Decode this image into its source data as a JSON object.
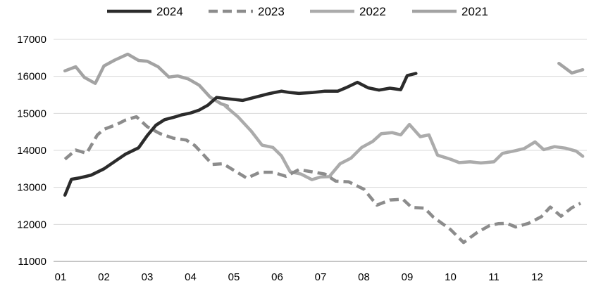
{
  "chart_data": {
    "type": "line",
    "x_ticks": [
      "01",
      "02",
      "03",
      "04",
      "05",
      "06",
      "07",
      "08",
      "09",
      "10",
      "11",
      "12"
    ],
    "y_ticks": [
      11000,
      12000,
      13000,
      14000,
      15000,
      16000,
      17000
    ],
    "ylim": [
      11000,
      17000
    ],
    "grid": "horizontal",
    "legend_position": "top",
    "series": [
      {
        "name": "2024",
        "color": "#2b2b2b",
        "style": "solid",
        "points": [
          [
            1.1,
            12790
          ],
          [
            1.25,
            13220
          ],
          [
            1.45,
            13260
          ],
          [
            1.7,
            13330
          ],
          [
            2.0,
            13500
          ],
          [
            2.3,
            13740
          ],
          [
            2.5,
            13900
          ],
          [
            2.8,
            14070
          ],
          [
            3.0,
            14400
          ],
          [
            3.2,
            14680
          ],
          [
            3.4,
            14830
          ],
          [
            3.6,
            14890
          ],
          [
            3.8,
            14960
          ],
          [
            4.0,
            15010
          ],
          [
            4.2,
            15090
          ],
          [
            4.4,
            15220
          ],
          [
            4.6,
            15430
          ],
          [
            4.9,
            15390
          ],
          [
            5.2,
            15350
          ],
          [
            5.5,
            15440
          ],
          [
            5.8,
            15530
          ],
          [
            6.1,
            15600
          ],
          [
            6.3,
            15560
          ],
          [
            6.5,
            15540
          ],
          [
            6.8,
            15560
          ],
          [
            7.1,
            15600
          ],
          [
            7.4,
            15600
          ],
          [
            7.6,
            15700
          ],
          [
            7.85,
            15840
          ],
          [
            8.1,
            15690
          ],
          [
            8.35,
            15630
          ],
          [
            8.6,
            15680
          ],
          [
            8.85,
            15640
          ],
          [
            9.0,
            16020
          ],
          [
            9.2,
            16080
          ]
        ]
      },
      {
        "name": "2023",
        "color": "#8c8c8c",
        "style": "dashed",
        "points": [
          [
            1.1,
            13760
          ],
          [
            1.35,
            14010
          ],
          [
            1.6,
            13920
          ],
          [
            1.85,
            14420
          ],
          [
            2.0,
            14570
          ],
          [
            2.3,
            14700
          ],
          [
            2.5,
            14820
          ],
          [
            2.75,
            14910
          ],
          [
            3.0,
            14640
          ],
          [
            3.3,
            14450
          ],
          [
            3.6,
            14330
          ],
          [
            3.9,
            14280
          ],
          [
            4.1,
            14130
          ],
          [
            4.3,
            13880
          ],
          [
            4.5,
            13620
          ],
          [
            4.75,
            13640
          ],
          [
            5.0,
            13460
          ],
          [
            5.3,
            13250
          ],
          [
            5.6,
            13410
          ],
          [
            5.9,
            13410
          ],
          [
            6.2,
            13300
          ],
          [
            6.5,
            13480
          ],
          [
            6.8,
            13420
          ],
          [
            7.1,
            13360
          ],
          [
            7.35,
            13170
          ],
          [
            7.65,
            13150
          ],
          [
            8.0,
            12950
          ],
          [
            8.3,
            12520
          ],
          [
            8.6,
            12660
          ],
          [
            8.9,
            12680
          ],
          [
            9.1,
            12460
          ],
          [
            9.4,
            12440
          ],
          [
            9.6,
            12200
          ],
          [
            10.0,
            11860
          ],
          [
            10.3,
            11510
          ],
          [
            10.6,
            11770
          ],
          [
            10.9,
            11970
          ],
          [
            11.1,
            12020
          ],
          [
            11.3,
            12030
          ],
          [
            11.5,
            11930
          ],
          [
            11.8,
            12030
          ],
          [
            12.1,
            12210
          ],
          [
            12.3,
            12470
          ],
          [
            12.55,
            12220
          ],
          [
            12.8,
            12450
          ],
          [
            13.0,
            12570
          ]
        ]
      },
      {
        "name": "2022",
        "color": "#ababab",
        "style": "solid",
        "points": [
          [
            4.8,
            15200
          ],
          [
            5.1,
            14900
          ],
          [
            5.4,
            14520
          ],
          [
            5.65,
            14140
          ],
          [
            5.9,
            14080
          ],
          [
            6.1,
            13850
          ],
          [
            6.3,
            13420
          ],
          [
            6.55,
            13360
          ],
          [
            6.8,
            13210
          ],
          [
            7.0,
            13280
          ],
          [
            7.2,
            13290
          ],
          [
            7.45,
            13640
          ],
          [
            7.7,
            13790
          ],
          [
            7.95,
            14080
          ],
          [
            8.2,
            14240
          ],
          [
            8.4,
            14450
          ],
          [
            8.65,
            14480
          ],
          [
            8.85,
            14420
          ],
          [
            9.05,
            14700
          ],
          [
            9.3,
            14370
          ],
          [
            9.5,
            14420
          ],
          [
            9.7,
            13870
          ],
          [
            10.0,
            13760
          ],
          [
            10.2,
            13670
          ],
          [
            10.45,
            13690
          ],
          [
            10.7,
            13660
          ],
          [
            11.0,
            13690
          ],
          [
            11.2,
            13920
          ],
          [
            11.45,
            13980
          ],
          [
            11.7,
            14050
          ],
          [
            11.95,
            14230
          ],
          [
            12.15,
            14020
          ],
          [
            12.4,
            14100
          ],
          [
            12.65,
            14060
          ],
          [
            12.9,
            13980
          ],
          [
            13.05,
            13840
          ]
        ]
      },
      {
        "name": "2021",
        "color": "#a3a3a3",
        "style": "solid",
        "points_segments": [
          [
            [
              1.1,
              16150
            ],
            [
              1.35,
              16260
            ],
            [
              1.55,
              15970
            ],
            [
              1.8,
              15810
            ],
            [
              2.0,
              16280
            ],
            [
              2.25,
              16440
            ],
            [
              2.55,
              16600
            ],
            [
              2.8,
              16430
            ],
            [
              3.0,
              16410
            ],
            [
              3.25,
              16260
            ],
            [
              3.5,
              15980
            ],
            [
              3.7,
              16010
            ],
            [
              3.95,
              15930
            ],
            [
              4.2,
              15760
            ],
            [
              4.45,
              15440
            ],
            [
              4.7,
              15260
            ],
            [
              4.85,
              15200
            ]
          ],
          [
            [
              12.5,
              16350
            ],
            [
              12.8,
              16090
            ],
            [
              13.05,
              16180
            ]
          ]
        ]
      }
    ]
  }
}
